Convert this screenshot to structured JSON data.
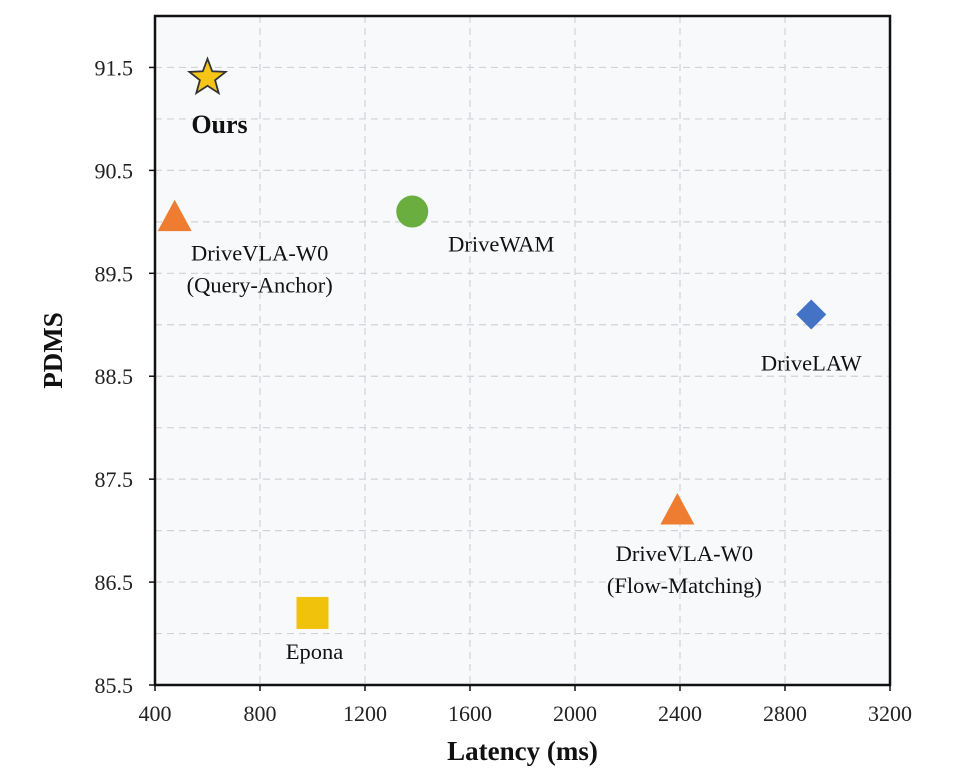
{
  "chart_data": {
    "type": "scatter",
    "title": "",
    "xlabel": "Latency (ms)",
    "ylabel": "PDMS",
    "xlim": [
      400,
      3200
    ],
    "ylim": [
      85.5,
      92.0
    ],
    "xticks": [
      400,
      800,
      1200,
      1600,
      2000,
      2400,
      2800,
      3200
    ],
    "yticks": [
      85.5,
      86.5,
      87.5,
      88.5,
      89.5,
      90.5,
      91.5
    ],
    "grid": true,
    "background": "#f7f9fb",
    "points": [
      {
        "id": "ours",
        "label": [
          "Ours"
        ],
        "x": 600,
        "y": 91.4,
        "marker": "star",
        "color": "#f5c518",
        "bold": true
      },
      {
        "id": "drivevla-qa",
        "label": [
          "DriveVLA-W0",
          "(Query-Anchor)"
        ],
        "x": 475,
        "y": 90.05,
        "marker": "triangle",
        "color": "#ee7d31"
      },
      {
        "id": "drivewam",
        "label": [
          "DriveWAM"
        ],
        "x": 1380,
        "y": 90.1,
        "marker": "circle",
        "color": "#6aae3f"
      },
      {
        "id": "drivelaw",
        "label": [
          "DriveLAW"
        ],
        "x": 2900,
        "y": 89.1,
        "marker": "diamond",
        "color": "#4472c4"
      },
      {
        "id": "drivevla-fm",
        "label": [
          "DriveVLA-W0",
          "(Flow-Matching)"
        ],
        "x": 2390,
        "y": 87.2,
        "marker": "triangle",
        "color": "#ee7d31"
      },
      {
        "id": "epona",
        "label": [
          "Epona"
        ],
        "x": 1000,
        "y": 86.2,
        "marker": "square",
        "color": "#f1c20b"
      }
    ]
  }
}
